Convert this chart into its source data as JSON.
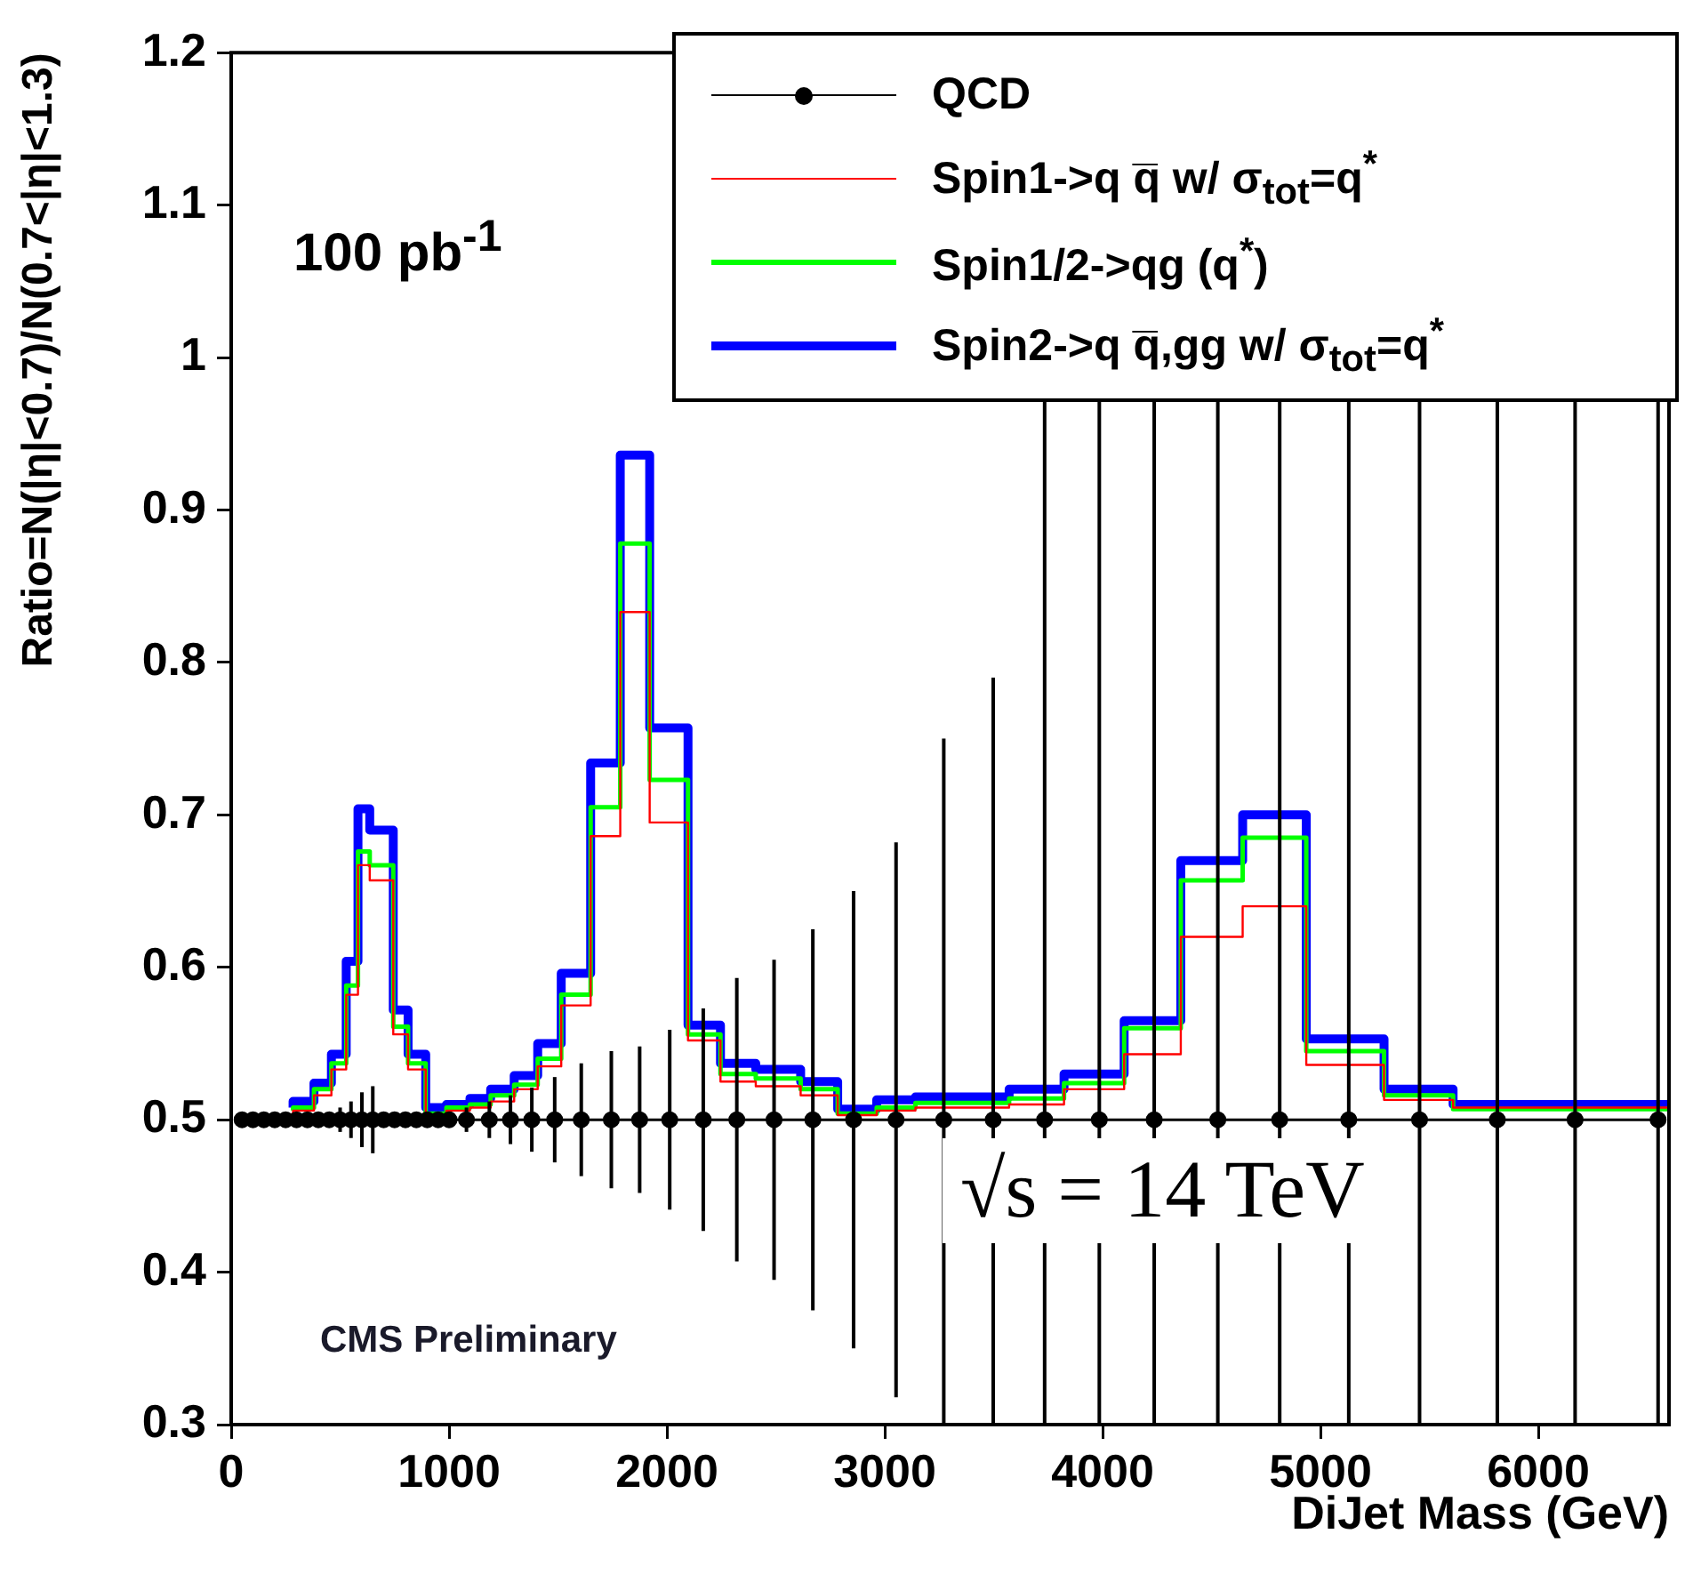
{
  "chart_data": {
    "type": "step",
    "ylabel": "Ratio=N(|η|<0.7)/N(0.7<|η|<1.3)",
    "xlabel": "DiJet Mass (GeV)",
    "annotations": [
      "100 pb$^{-1}$",
      "CMS Preliminary",
      "√s = 14 TeV"
    ],
    "x": [
      284,
      380,
      460,
      528,
      582,
      636,
      744,
      812,
      893,
      988,
      1096,
      1191,
      1299,
      1407,
      1515,
      1650,
      1786,
      1921,
      2097,
      2246,
      2408,
      2614,
      2784,
      2963,
      3141,
      3571,
      3823,
      4099,
      4359,
      4643,
      4935,
      5292,
      5609,
      5966,
      6600
    ],
    "series": [
      {
        "name": "QCD",
        "type": "line",
        "marker": "circle",
        "color": "#000000",
        "x": [
          50,
          100,
          150,
          200,
          250,
          300,
          350,
          400,
          450,
          500,
          550,
          600,
          650,
          700,
          750,
          800,
          850,
          900,
          950,
          1000,
          1080,
          1185,
          1282,
          1380,
          1485,
          1607,
          1745,
          1875,
          2013,
          2167,
          2321,
          2492,
          2670,
          2857,
          3052,
          3271,
          3498,
          3734,
          3985,
          4237,
          4529,
          4813,
          5130,
          5455,
          5812,
          6169,
          6550
        ],
        "values": [
          0.5,
          0.5,
          0.5,
          0.5,
          0.5,
          0.5,
          0.5,
          0.5,
          0.5,
          0.5,
          0.5,
          0.5,
          0.5,
          0.5,
          0.5,
          0.5,
          0.5,
          0.5,
          0.5,
          0.5,
          0.5,
          0.5,
          0.5,
          0.5,
          0.5,
          0.5,
          0.5,
          0.5,
          0.5,
          0.5,
          0.5,
          0.5,
          0.5,
          0.5,
          0.5,
          0.5,
          0.5,
          0.5,
          0.5,
          0.5,
          0.5,
          0.5,
          0.5,
          0.5,
          0.5,
          0.5,
          0.5
        ],
        "errors": [
          null,
          null,
          null,
          null,
          null,
          null,
          null,
          null,
          0.005,
          0.008,
          0.012,
          0.018,
          0.022,
          0.005,
          0.005,
          0.005,
          0.005,
          0.005,
          0.005,
          0.005,
          0.008,
          0.012,
          0.016,
          0.021,
          0.028,
          0.037,
          0.045,
          0.048,
          0.059,
          0.073,
          0.093,
          0.105,
          0.125,
          0.15,
          0.182,
          0.25,
          0.29,
          null,
          null,
          null,
          null,
          null,
          null,
          null,
          null,
          null,
          null
        ]
      },
      {
        "name": "Spin2->q q̅,gg w/  σ$_{tot}$=q$^{*}$",
        "color": "#0000ff",
        "values": [
          0.508,
          0.512,
          0.524,
          0.543,
          0.604,
          0.704,
          0.69,
          0.572,
          0.543,
          0.508,
          0.51,
          0.514,
          0.52,
          0.529,
          0.55,
          0.596,
          0.734,
          0.936,
          0.757,
          0.562,
          0.537,
          0.533,
          0.525,
          0.507,
          0.513,
          0.515,
          0.52,
          0.53,
          0.565,
          0.67,
          0.7,
          0.553,
          0.52,
          0.51,
          0.51
        ]
      },
      {
        "name": "Spin1/2->qg (q$^{*}$)",
        "color": "#00ff00",
        "values": [
          0.506,
          0.508,
          0.52,
          0.537,
          0.588,
          0.676,
          0.667,
          0.561,
          0.537,
          0.504,
          0.508,
          0.51,
          0.516,
          0.523,
          0.54,
          0.582,
          0.705,
          0.878,
          0.723,
          0.556,
          0.53,
          0.527,
          0.52,
          0.504,
          0.508,
          0.511,
          0.514,
          0.524,
          0.56,
          0.657,
          0.685,
          0.545,
          0.516,
          0.507,
          0.507
        ]
      },
      {
        "name": "Spin1->q q̅ w/  σ$_{tot}$=q$^{*}$",
        "color": "#ff0000",
        "values": [
          0.504,
          0.506,
          0.516,
          0.533,
          0.582,
          0.667,
          0.657,
          0.556,
          0.533,
          0.502,
          0.506,
          0.508,
          0.512,
          0.52,
          0.535,
          0.575,
          0.686,
          0.833,
          0.695,
          0.552,
          0.525,
          0.522,
          0.516,
          0.503,
          0.506,
          0.508,
          0.51,
          0.52,
          0.543,
          0.62,
          0.64,
          0.536,
          0.513,
          0.508,
          0.508
        ]
      }
    ],
    "ref_lines": [
      {
        "axis": "x",
        "value": 3734,
        "color": "#000000"
      },
      {
        "axis": "x",
        "value": 3985,
        "color": "#000000"
      },
      {
        "axis": "x",
        "value": 4237,
        "color": "#000000"
      },
      {
        "axis": "x",
        "value": 4529,
        "color": "#000000"
      },
      {
        "axis": "x",
        "value": 4813,
        "color": "#000000"
      },
      {
        "axis": "x",
        "value": 5130,
        "color": "#000000"
      },
      {
        "axis": "x",
        "value": 5455,
        "color": "#000000"
      },
      {
        "axis": "x",
        "value": 5812,
        "color": "#000000"
      },
      {
        "axis": "x",
        "value": 6169,
        "color": "#000000"
      },
      {
        "axis": "x",
        "value": 6550,
        "color": "#000000"
      }
    ],
    "xlim": [
      0,
      6600
    ],
    "xticks": [
      0,
      1000,
      2000,
      3000,
      4000,
      5000,
      6000
    ],
    "ylim": [
      0.3,
      1.2
    ],
    "yticks": [
      0.3,
      0.4,
      0.5,
      0.6,
      0.7,
      0.8,
      0.9,
      1,
      1.1,
      1.2
    ],
    "grid": false,
    "legend": "top right"
  }
}
